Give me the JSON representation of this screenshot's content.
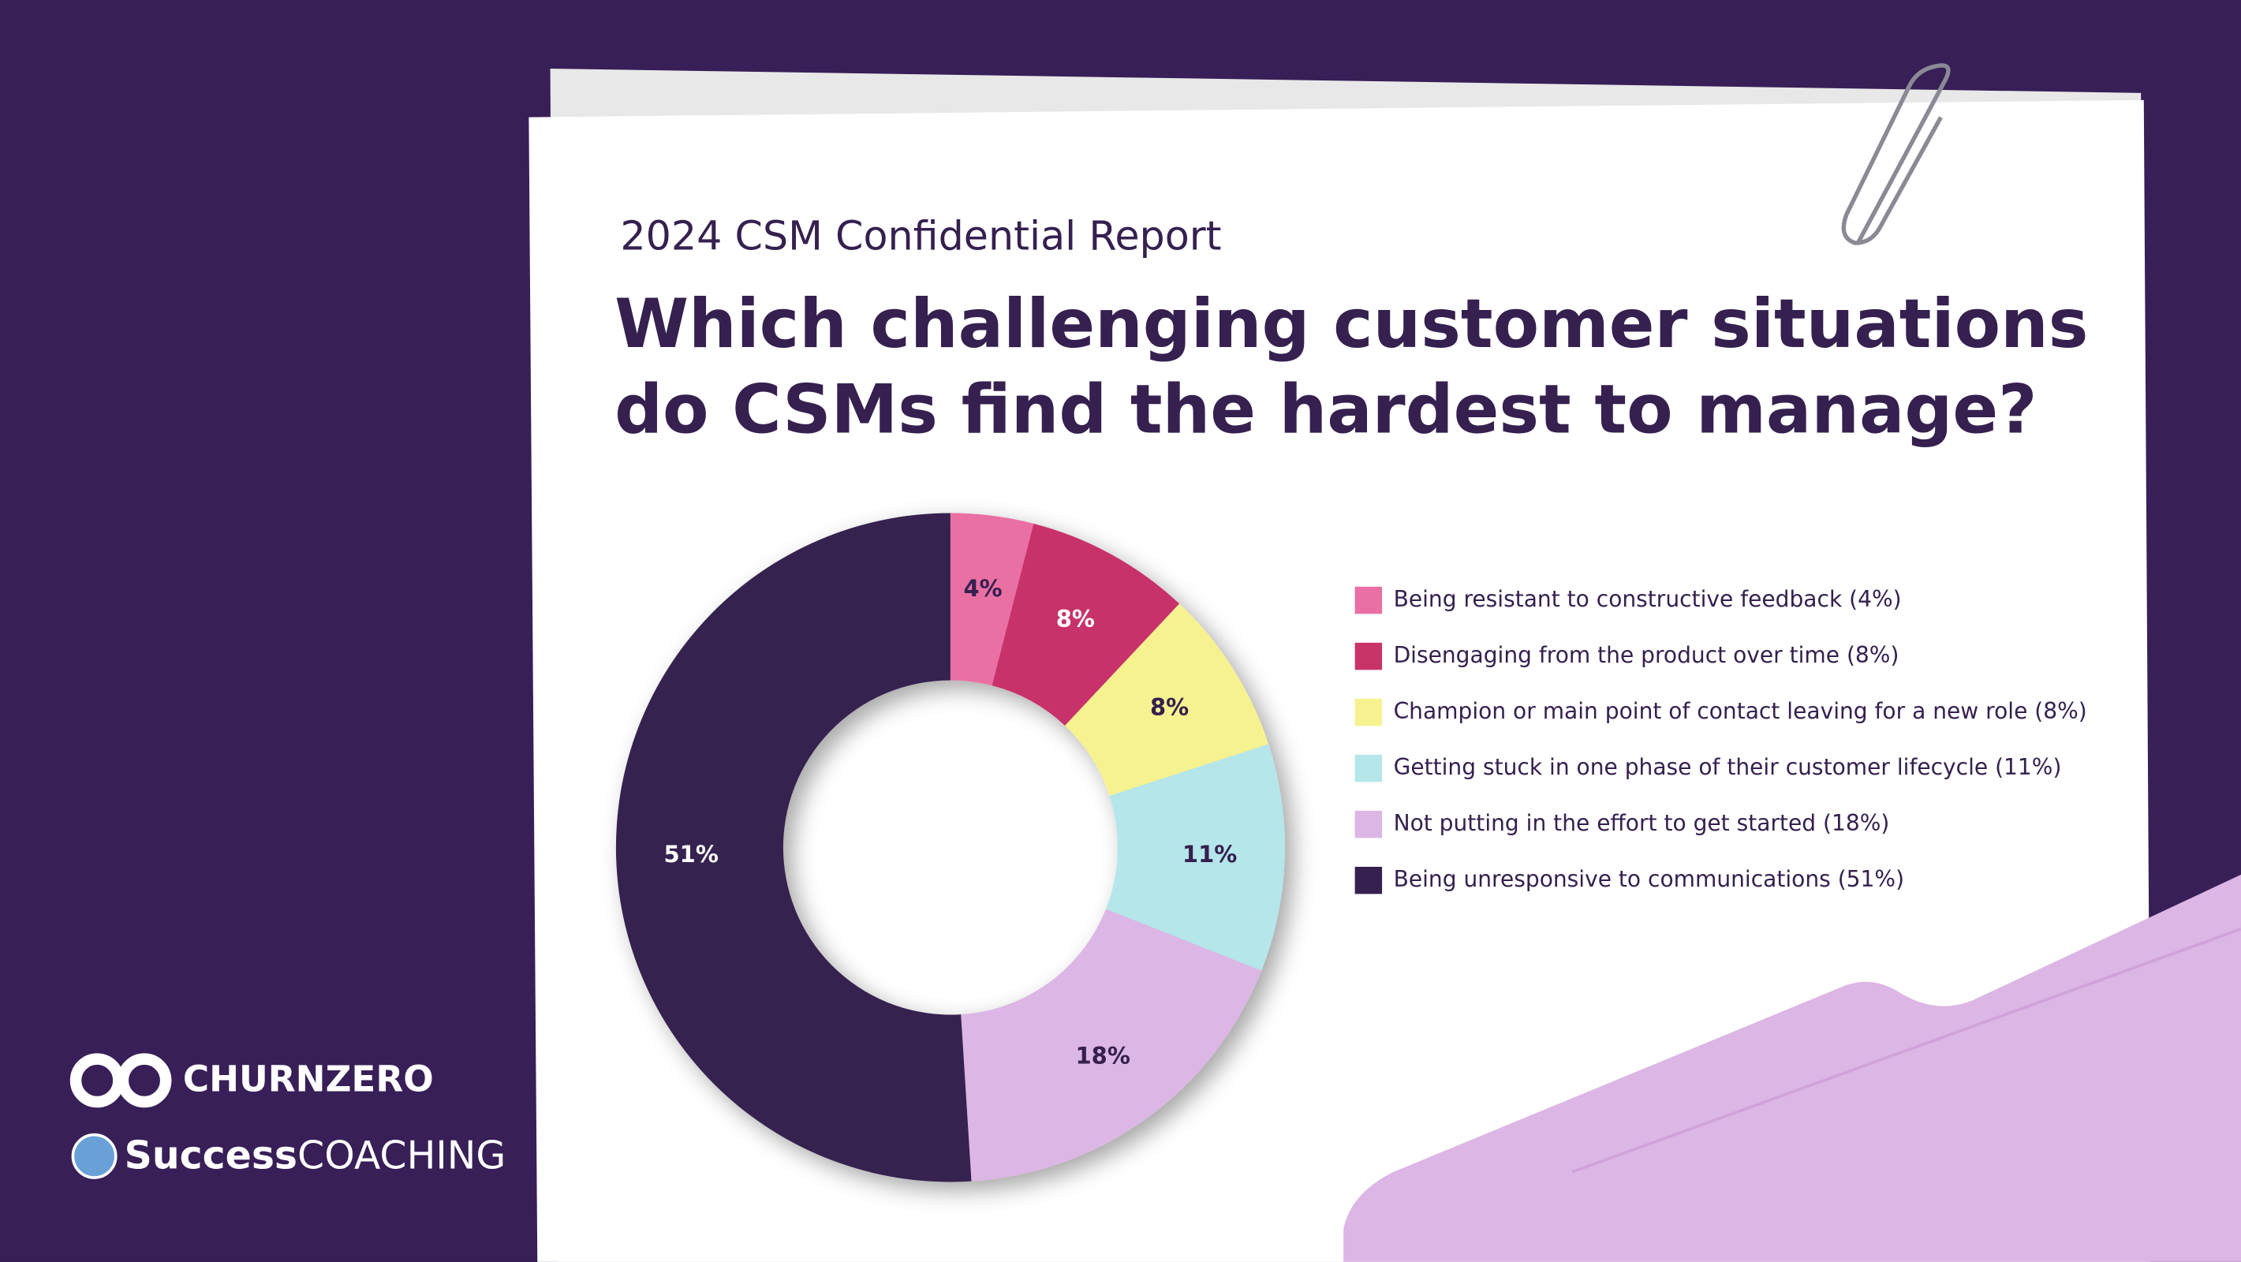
{
  "chart_data": {
    "type": "donut",
    "subtitle": "2024 CSM Confidential Report",
    "title": "Which challenging customer situations do CSMs find the hardest to manage?",
    "categories": [
      "Being resistant to constructive feedback (4%)",
      "Disengaging from the product over time (8%)",
      "Champion or main point of contact leaving for a new role (8%)",
      "Getting stuck in one phase of their customer lifecycle (11%)",
      "Not putting in the effort to get started (18%)",
      "Being unresponsive to communications (51%)"
    ],
    "values": [
      4,
      8,
      8,
      11,
      18,
      51
    ],
    "value_labels": [
      "4%",
      "8%",
      "8%",
      "11%",
      "18%",
      "51%"
    ],
    "colors": [
      "#ea6fa4",
      "#c8336a",
      "#f6f28f",
      "#b5e6ea",
      "#dcb6e4",
      "#35204f"
    ],
    "legend": "right"
  },
  "branding": {
    "churnzero": "CHURNZERO",
    "success": "Success",
    "coaching": "COACHING"
  }
}
